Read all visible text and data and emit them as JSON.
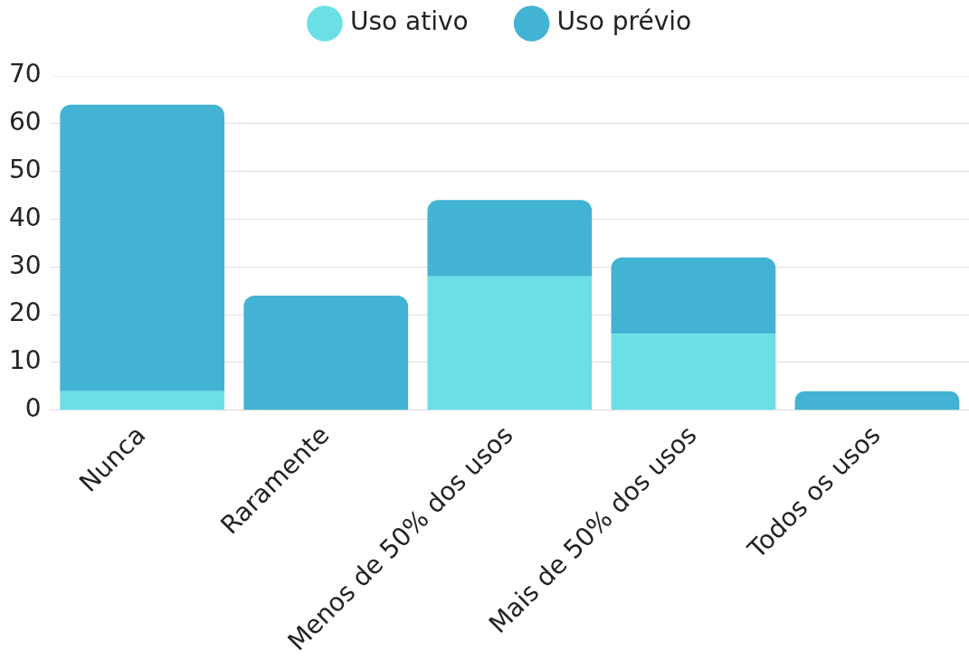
{
  "chart_data": {
    "type": "bar",
    "stacked": true,
    "categories": [
      "Nunca",
      "Raramente",
      "Menos de 50% dos usos",
      "Mais de 50% dos usos",
      "Todos os usos"
    ],
    "series": [
      {
        "name": "Uso ativo",
        "color": "#6ae0e6",
        "values": [
          4,
          0,
          28,
          16,
          0
        ]
      },
      {
        "name": "Uso prévio",
        "color": "#42b3d3",
        "values": [
          60,
          24,
          16,
          16,
          4
        ]
      }
    ],
    "ylim": [
      0,
      70
    ],
    "yticks": [
      0,
      10,
      20,
      30,
      40,
      50,
      60,
      70
    ],
    "grid": "y",
    "legend": "top"
  }
}
